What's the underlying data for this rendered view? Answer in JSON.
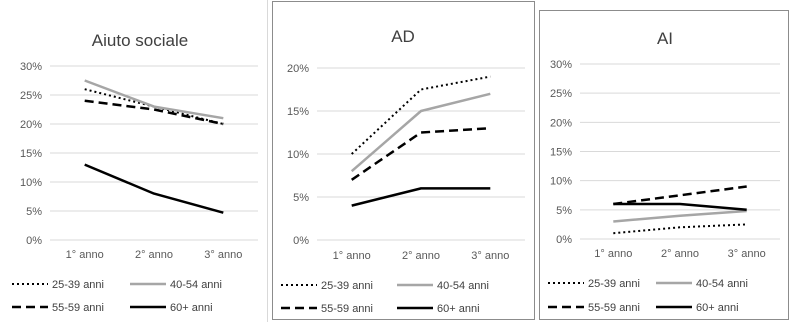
{
  "chart_data": [
    {
      "type": "line",
      "title": "Aiuto sociale",
      "categories": [
        "1° anno",
        "2° anno",
        "3° anno"
      ],
      "y_ticks": [
        "0%",
        "5%",
        "10%",
        "15%",
        "20%",
        "25%",
        "30%"
      ],
      "ylim": [
        0,
        30
      ],
      "grid": true,
      "legend_position": "bottom",
      "series": [
        {
          "name": "25-39 anni",
          "values": [
            26,
            23,
            20
          ]
        },
        {
          "name": "40-54 anni",
          "values": [
            27.5,
            23,
            21
          ]
        },
        {
          "name": "55-59 anni",
          "values": [
            24,
            22.5,
            20
          ]
        },
        {
          "name": "60+ anni",
          "values": [
            13,
            8,
            4.7
          ]
        }
      ]
    },
    {
      "type": "line",
      "title": "AD",
      "categories": [
        "1° anno",
        "2° anno",
        "3° anno"
      ],
      "y_ticks": [
        "0%",
        "5%",
        "10%",
        "15%",
        "20%"
      ],
      "ylim": [
        0,
        20
      ],
      "grid": true,
      "legend_position": "bottom",
      "series": [
        {
          "name": "25-39 anni",
          "values": [
            10,
            17.5,
            19
          ]
        },
        {
          "name": "40-54 anni",
          "values": [
            8,
            15,
            17
          ]
        },
        {
          "name": "55-59 anni",
          "values": [
            7,
            12.5,
            13
          ]
        },
        {
          "name": "60+ anni",
          "values": [
            4,
            6,
            6
          ]
        }
      ]
    },
    {
      "type": "line",
      "title": "AI",
      "categories": [
        "1° anno",
        "2° anno",
        "3° anno"
      ],
      "y_ticks": [
        "0%",
        "5%",
        "10%",
        "15%",
        "20%",
        "25%",
        "30%"
      ],
      "ylim": [
        0,
        30
      ],
      "grid": true,
      "legend_position": "bottom",
      "series": [
        {
          "name": "25-39 anni",
          "values": [
            1,
            2,
            2.5
          ]
        },
        {
          "name": "40-54 anni",
          "values": [
            3,
            4,
            4.8
          ]
        },
        {
          "name": "55-59 anni",
          "values": [
            6,
            7.5,
            9
          ]
        },
        {
          "name": "60+ anni",
          "values": [
            6,
            6,
            5
          ]
        }
      ]
    }
  ],
  "series_styles": [
    {
      "color": "#000000",
      "dash": "dotted"
    },
    {
      "color": "#a6a6a6",
      "dash": "solid"
    },
    {
      "color": "#000000",
      "dash": "dashed"
    },
    {
      "color": "#000000",
      "dash": "solid-thick"
    }
  ]
}
